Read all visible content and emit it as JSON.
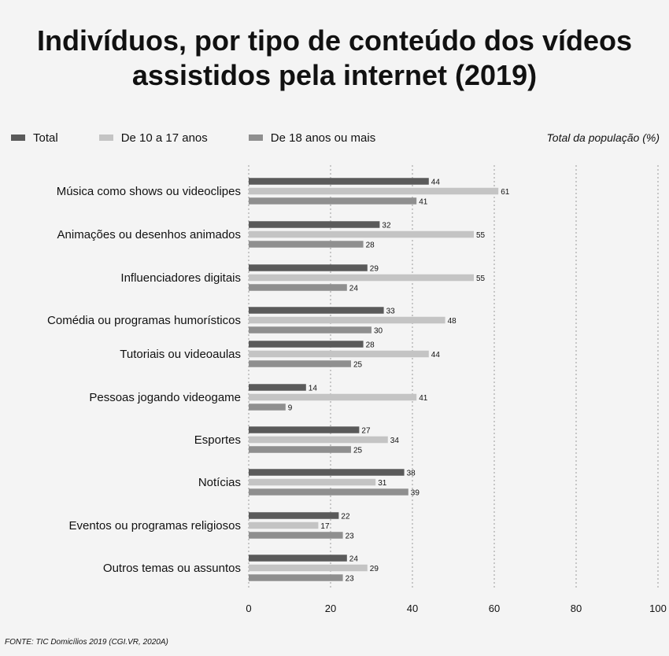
{
  "chart_data": {
    "type": "bar",
    "orientation": "horizontal",
    "title": "Indivíduos, por tipo de conteúdo dos vídeos assistidos pela internet (2019)",
    "unit_label": "Total da população (%)",
    "source": "FONTE: TIC Domicílios 2019 (CGI.VR, 2020A)",
    "categories": [
      "Música como shows ou videoclipes",
      "Animações ou desenhos animados",
      "Influenciadores digitais",
      "Comédia ou programas humorísticos",
      "Tutoriais ou videoaulas",
      "Pessoas jogando videogame",
      "Esportes",
      "Notícias",
      "Eventos ou programas religiosos",
      "Outros temas ou assuntos"
    ],
    "series": [
      {
        "name": "Total",
        "color": "#5a5a5a",
        "values": [
          44,
          32,
          29,
          33,
          28,
          14,
          27,
          38,
          22,
          24
        ]
      },
      {
        "name": "De 10 a 17 anos",
        "color": "#c4c4c4",
        "values": [
          61,
          55,
          55,
          48,
          44,
          41,
          34,
          31,
          17,
          29
        ]
      },
      {
        "name": "De 18 anos ou mais",
        "color": "#8f8f8f",
        "values": [
          41,
          28,
          24,
          30,
          25,
          9,
          25,
          39,
          23,
          23
        ]
      }
    ],
    "xlim": [
      0,
      100
    ],
    "xticks": [
      "0",
      "20",
      "40",
      "60",
      "80",
      "100"
    ],
    "grid": true,
    "legend_position": "top-left"
  }
}
